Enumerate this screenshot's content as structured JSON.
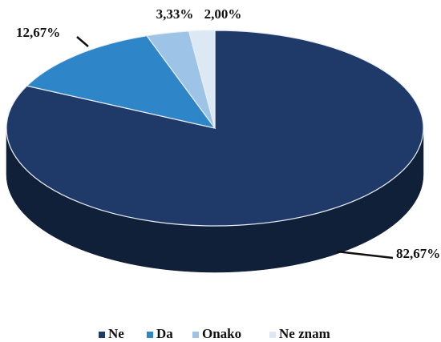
{
  "chart_data": {
    "type": "pie",
    "categories": [
      "Ne",
      "Da",
      "Onako",
      "Ne znam"
    ],
    "values": [
      82.67,
      12.67,
      3.33,
      2.0
    ],
    "value_labels": [
      "82,67%",
      "12,67%",
      "3,33%",
      "2,00%"
    ],
    "colors": [
      "#1f3a68",
      "#2e86c8",
      "#9dc3e6",
      "#dde8f5"
    ],
    "legend": "bottom"
  }
}
